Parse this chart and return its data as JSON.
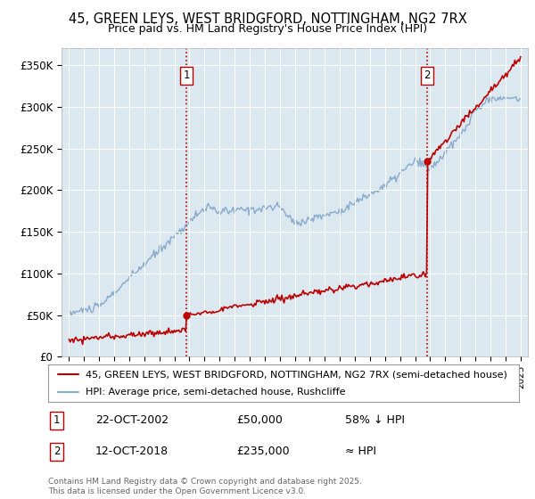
{
  "title": "45, GREEN LEYS, WEST BRIDGFORD, NOTTINGHAM, NG2 7RX",
  "subtitle": "Price paid vs. HM Land Registry's House Price Index (HPI)",
  "legend_line1": "45, GREEN LEYS, WEST BRIDGFORD, NOTTINGHAM, NG2 7RX (semi-detached house)",
  "legend_line2": "HPI: Average price, semi-detached house, Rushcliffe",
  "footnote": "Contains HM Land Registry data © Crown copyright and database right 2025.\nThis data is licensed under the Open Government Licence v3.0.",
  "sale1_date": "22-OCT-2002",
  "sale1_price": 50000,
  "sale1_label": "58% ↓ HPI",
  "sale2_date": "12-OCT-2018",
  "sale2_price": 235000,
  "sale2_label": "≈ HPI",
  "sale1_year": 2002.8,
  "sale2_year": 2018.8,
  "red_line_color": "#bb0000",
  "blue_line_color": "#88aacc",
  "background_color": "#dce8f0",
  "ylim": [
    0,
    370000
  ],
  "xlim_start": 1994.5,
  "xlim_end": 2025.5,
  "yticks": [
    0,
    50000,
    100000,
    150000,
    200000,
    250000,
    300000,
    350000
  ],
  "ytick_labels": [
    "£0",
    "£50K",
    "£100K",
    "£150K",
    "£200K",
    "£250K",
    "£300K",
    "£350K"
  ],
  "xticks": [
    1995,
    1996,
    1997,
    1998,
    1999,
    2000,
    2001,
    2002,
    2003,
    2004,
    2005,
    2006,
    2007,
    2008,
    2009,
    2010,
    2011,
    2012,
    2013,
    2014,
    2015,
    2016,
    2017,
    2018,
    2019,
    2020,
    2021,
    2022,
    2023,
    2024,
    2025
  ]
}
